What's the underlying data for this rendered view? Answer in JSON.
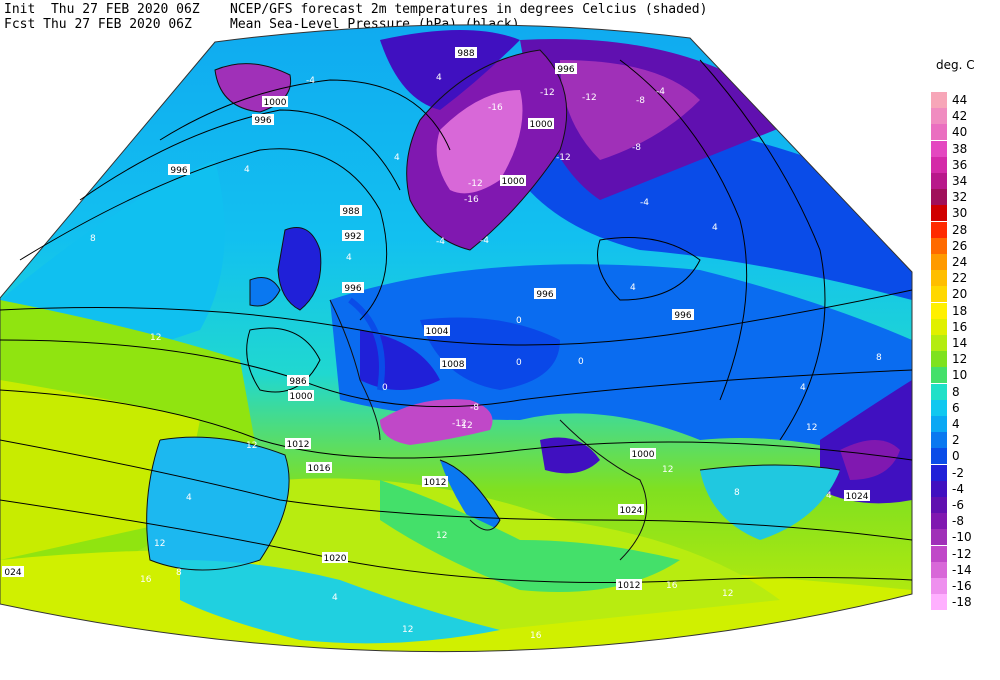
{
  "header": {
    "init_line": "Init  Thu 27 FEB 2020 06Z",
    "fcst_line": "Fcst Thu 27 FEB 2020 06Z",
    "title_line1": "NCEP/GFS forecast 2m temperatures in degrees Celcius (shaded)",
    "title_line2": "Mean Sea-Level Pressure (hPa) (black)."
  },
  "legend": {
    "title": "deg. C",
    "entries": [
      {
        "label": "44",
        "color": "#f7a6b8"
      },
      {
        "label": "42",
        "color": "#f08cc0"
      },
      {
        "label": "40",
        "color": "#ea6fc0"
      },
      {
        "label": "38",
        "color": "#e448c0"
      },
      {
        "label": "36",
        "color": "#d42aa8"
      },
      {
        "label": "34",
        "color": "#b8188a"
      },
      {
        "label": "32",
        "color": "#a0105a"
      },
      {
        "label": "30",
        "color": "#d00000"
      },
      {
        "label": "28",
        "color": "#ff2a00"
      },
      {
        "label": "26",
        "color": "#ff6a00"
      },
      {
        "label": "24",
        "color": "#ff9a00"
      },
      {
        "label": "22",
        "color": "#ffbe00"
      },
      {
        "label": "20",
        "color": "#ffd800"
      },
      {
        "label": "18",
        "color": "#fff000"
      },
      {
        "label": "16",
        "color": "#e0f000"
      },
      {
        "label": "14",
        "color": "#b4ec10"
      },
      {
        "label": "12",
        "color": "#7ee21e"
      },
      {
        "label": "10",
        "color": "#44e06a"
      },
      {
        "label": "8",
        "color": "#20e0c8"
      },
      {
        "label": "6",
        "color": "#10c8f0"
      },
      {
        "label": "4",
        "color": "#0aa8f4"
      },
      {
        "label": "2",
        "color": "#0a78f0"
      },
      {
        "label": "0",
        "color": "#0a4ce8"
      },
      {
        "label": "-2",
        "color": "#2020d8"
      },
      {
        "label": "-4",
        "color": "#4010c0"
      },
      {
        "label": "-6",
        "color": "#6010b0"
      },
      {
        "label": "-8",
        "color": "#8018b0"
      },
      {
        "label": "-10",
        "color": "#a030b8"
      },
      {
        "label": "-12",
        "color": "#c048c8"
      },
      {
        "label": "-14",
        "color": "#d868d8"
      },
      {
        "label": "-16",
        "color": "#ee90ee"
      },
      {
        "label": "-18",
        "color": "#ffb0ff"
      }
    ]
  },
  "isobar_labels": [
    "988",
    "996",
    "1000",
    "996",
    "1000",
    "996",
    "988",
    "992",
    "996",
    "1000",
    "996",
    "996",
    "1004",
    "1008",
    "986",
    "1000",
    "1012",
    "1016",
    "1000",
    "1012",
    "1024",
    "1020",
    "1012",
    "024",
    "1024"
  ],
  "temp_labels": [
    "-4",
    "-12",
    "-12",
    "-8",
    "-8",
    "-4",
    "-4",
    "-16",
    "-12",
    "-16",
    "-12",
    "-12",
    "-4",
    "-8",
    "4",
    "4",
    "4",
    "4",
    "4",
    "8",
    "12",
    "12",
    "12",
    "12",
    "16",
    "16",
    "12",
    "16",
    "12",
    "8",
    "4",
    "8",
    "12",
    "0",
    "0",
    "0",
    "0",
    "-4",
    "-12",
    "4",
    "4",
    "4",
    "8",
    "4",
    "12"
  ]
}
